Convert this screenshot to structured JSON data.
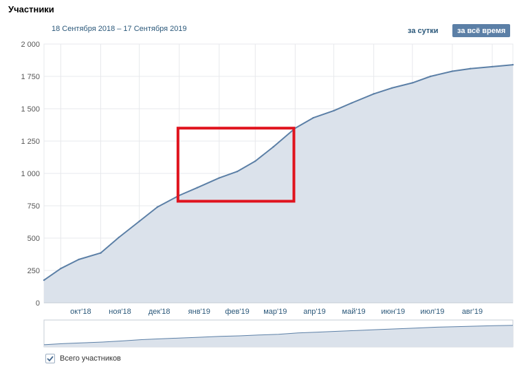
{
  "header": {
    "title": "Участники",
    "date_range": "18 Сентября 2018 – 17 Сентября 2019",
    "period_daily": "за сутки",
    "period_all": "за всё время"
  },
  "legend": {
    "series_label": "Всего участников",
    "checked": true
  },
  "colors": {
    "line": "#5b7fa6",
    "fill": "#dbe2eb",
    "grid": "#e7e8ec",
    "highlight": "#e0141e",
    "active_button": "#5b7fa6"
  },
  "chart_data": {
    "type": "area",
    "ylim": [
      0,
      2000
    ],
    "yticks": [
      0,
      250,
      500,
      750,
      1000,
      1250,
      1500,
      1750,
      2000
    ],
    "ytick_labels": [
      "0",
      "250",
      "500",
      "750",
      "1 000",
      "1 250",
      "1 500",
      "1 750",
      "2 000"
    ],
    "xtick_labels": [
      "окт'18",
      "ноя'18",
      "дек'18",
      "янв'19",
      "фев'19",
      "мар'19",
      "апр'19",
      "май'19",
      "июн'19",
      "июл'19",
      "авг'19"
    ],
    "grid": true,
    "series": [
      {
        "name": "Всего участников",
        "x": [
          "2018-09-18",
          "2018-10-01",
          "2018-10-15",
          "2018-11-01",
          "2018-11-15",
          "2018-12-01",
          "2018-12-15",
          "2019-01-01",
          "2019-01-15",
          "2019-02-01",
          "2019-02-15",
          "2019-03-01",
          "2019-03-15",
          "2019-04-01",
          "2019-04-15",
          "2019-05-01",
          "2019-05-15",
          "2019-06-01",
          "2019-06-15",
          "2019-07-01",
          "2019-07-15",
          "2019-08-01",
          "2019-08-15",
          "2019-09-01",
          "2019-09-17"
        ],
        "values": [
          175,
          265,
          335,
          385,
          505,
          630,
          740,
          830,
          890,
          965,
          1015,
          1095,
          1205,
          1350,
          1430,
          1485,
          1545,
          1615,
          1660,
          1700,
          1750,
          1790,
          1810,
          1825,
          1840
        ]
      }
    ],
    "highlight_box": {
      "x_range": [
        "2018-12-31",
        "2019-03-31"
      ],
      "y_range": [
        785,
        1350
      ]
    }
  },
  "overview": {
    "values": [
      0.08,
      0.12,
      0.15,
      0.18,
      0.22,
      0.27,
      0.3,
      0.33,
      0.36,
      0.39,
      0.41,
      0.44,
      0.47,
      0.52,
      0.55,
      0.58,
      0.61,
      0.64,
      0.67,
      0.7,
      0.73,
      0.75,
      0.77,
      0.79,
      0.8
    ]
  }
}
